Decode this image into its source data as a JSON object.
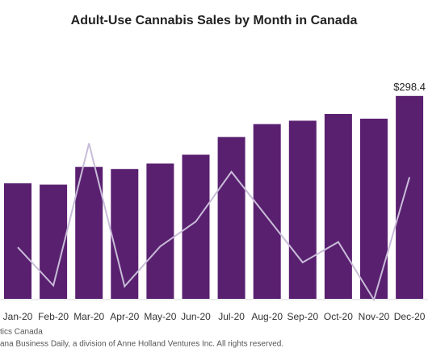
{
  "chart_data": {
    "type": "bar",
    "title": "Adult-Use Cannabis Sales by Month in Canada",
    "categories": [
      "Jan-20",
      "Feb-20",
      "Mar-20",
      "Apr-20",
      "May-20",
      "Jun-20",
      "Jul-20",
      "Aug-20",
      "Sep-20",
      "Oct-20",
      "Nov-20",
      "Dec-20"
    ],
    "series": [
      {
        "color": "#5a2070",
        "values": [
          170,
          168,
          194,
          191,
          199,
          212,
          238,
          257,
          262,
          272,
          265,
          298.4
        ],
        "value_labels": [
          null,
          null,
          null,
          null,
          null,
          null,
          null,
          null,
          null,
          null,
          null,
          "$298.4"
        ]
      },
      {
        "type": "line",
        "axis": "y2",
        "color": "#c8bcd8",
        "values": [
          3.3,
          -1,
          15,
          -1.1,
          3.4,
          6.2,
          11.8,
          6.7,
          1.6,
          3.9,
          -2.6,
          11.2
        ]
      }
    ],
    "ylim": [
      0,
      392
    ],
    "y2lim": [
      -2.5,
      27.5
    ],
    "notes": [
      "tics Canada",
      "ana Business Daily, a division of Anne Holland Ventures Inc. All rights reserved."
    ]
  }
}
